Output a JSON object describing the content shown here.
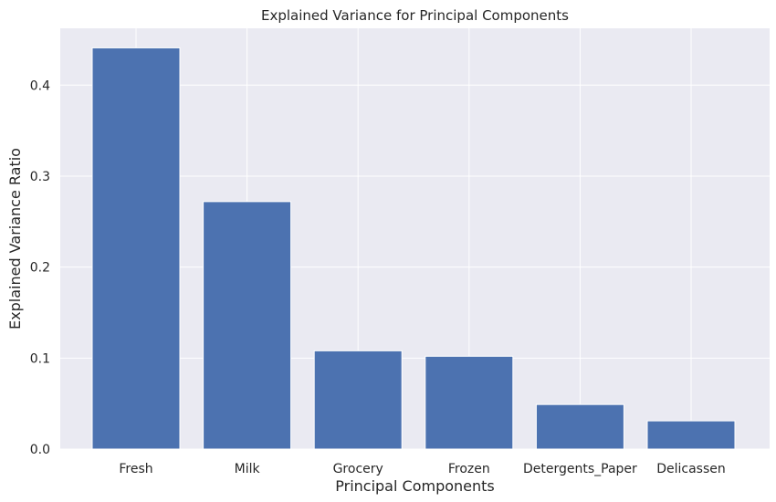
{
  "chart_data": {
    "type": "bar",
    "title": "Explained Variance for Principal Components",
    "xlabel": "Principal Components",
    "ylabel": "Explained Variance Ratio",
    "categories": [
      "Fresh",
      "Milk",
      "Grocery",
      "Frozen",
      "Detergents_Paper",
      "Delicassen"
    ],
    "values": [
      0.441,
      0.272,
      0.108,
      0.102,
      0.049,
      0.031
    ],
    "ylim": [
      0,
      0.4625
    ],
    "yticks": [
      0.0,
      0.1,
      0.2,
      0.3,
      0.4
    ],
    "ytick_labels": [
      "0.0",
      "0.1",
      "0.2",
      "0.3",
      "0.4"
    ],
    "grid": true,
    "legend": "none",
    "colors": {
      "bar": "#4c72b0",
      "plot_background": "#eaeaf2",
      "grid": "#ffffff",
      "text": "#262626"
    }
  }
}
